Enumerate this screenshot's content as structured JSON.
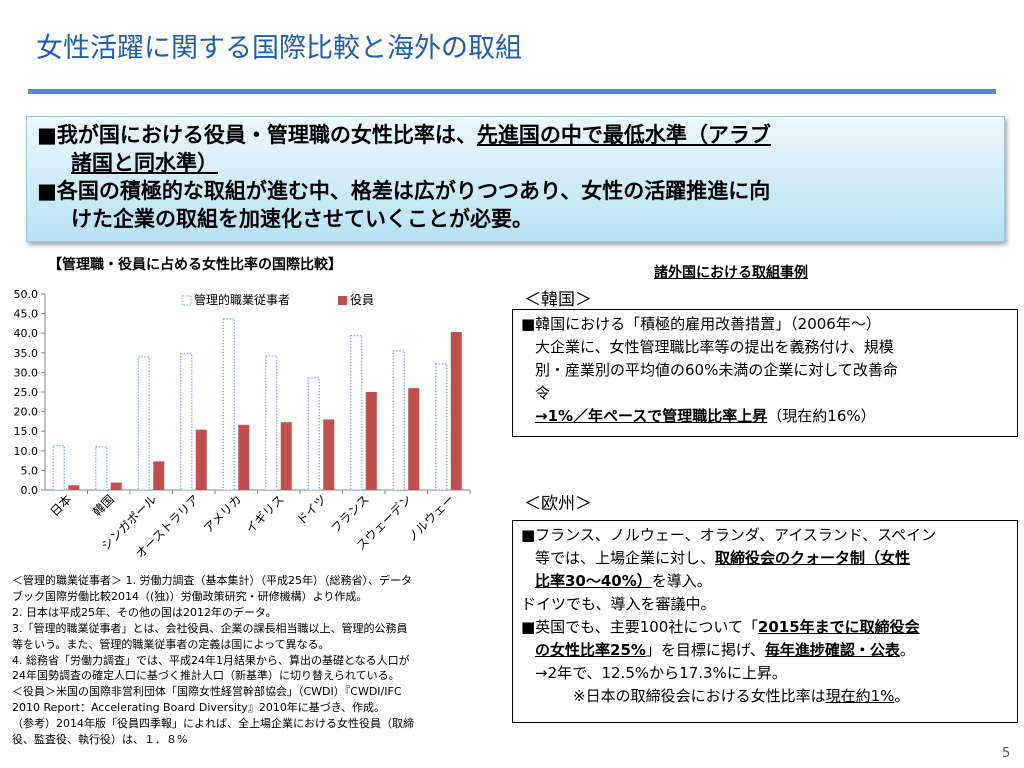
{
  "title": "女性活躍に関する国際比較と海外の取組",
  "summary": {
    "line1": {
      "prefix": "■我が国における役員・管理職の女性比率は、",
      "emphasis": "先進国の中で最低水準（アラブ"
    },
    "line2": {
      "emphasis": "諸国と同水準）"
    },
    "line3": "■各国の積極的な取組が進む中、格差は広がりつつあり、女性の活躍推進に向",
    "line4": "けた企業の取組を加速化させていくことが必要。"
  },
  "chart_title": "【管理職・役員に占める女性比率の国際比較】",
  "chart_data": {
    "type": "bar",
    "categories": [
      "日本",
      "韓国",
      "シンガポール",
      "オーストラリア",
      "アメリカ",
      "イギリス",
      "ドイツ",
      "フランス",
      "スウェーデン",
      "ノルウェー"
    ],
    "series": [
      {
        "name": "管理的職業従事者",
        "values": [
          11.3,
          11.0,
          33.9,
          34.8,
          43.7,
          34.2,
          28.6,
          39.4,
          35.5,
          32.2
        ],
        "color": "#ffffff",
        "stroke": "#8db3e2"
      },
      {
        "name": "役員",
        "values": [
          1.2,
          1.9,
          7.3,
          15.4,
          16.6,
          17.3,
          18.0,
          25.0,
          26.0,
          40.3
        ],
        "color": "#c0504d"
      }
    ],
    "ylim": [
      0,
      50
    ],
    "yticks": [
      "0.0",
      "5.0",
      "10.0",
      "15.0",
      "20.0",
      "25.0",
      "30.0",
      "35.0",
      "40.0",
      "45.0",
      "50.0"
    ],
    "grid": false,
    "legend": "top-center"
  },
  "notes": [
    "＜管理的職業従事者＞ 1. 労働力調査（基本集計）（平成25年）（総務省）、データ",
    "ブック国際労働比較2014（(独)）労働政策研究・研修機構）より作成。",
    "2. 日本は平成25年、その他の国は2012年のデータ。",
    "3.「管理的職業従事者」とは、会社役員、企業の課長相当職以上、管理的公務員",
    "等をいう。また、管理的職業従事者の定義は国によって異なる。",
    "4. 総務省「労働力調査」では、平成24年1月結果から、算出の基礎となる人口が",
    "24年国勢調査の確定人口に基づく推計人口（新基準）に切り替えられている。",
    "＜役員＞米国の国際非営利団体「国際女性経営幹部協会」（CWDI）『CWDI/IFC",
    "2010 Report：Accelerating Board Diversity』2010年に基づき、作成。",
    "（参考）2014年版「役員四季報」によれば、全上場企業における女性役員（取締",
    "役、監査役、執行役）は、１．８%"
  ],
  "cases_title": "諸外国における取組事例",
  "korea": {
    "label": "＜韓国＞",
    "line1": "■韓国における「積極的雇用改善措置」（2006年～）",
    "line2": "大企業に、女性管理職比率等の提出を義務付け、規模",
    "line3": "別・産業別の平均値の60%未満の企業に対して改善命",
    "line4": "令",
    "line5": {
      "emphasis": "→1%／年ペースで管理職比率上昇",
      "suffix": "（現在約16%）"
    }
  },
  "europe": {
    "label": "＜欧州＞",
    "line1": "■フランス、ノルウェー、オランダ、アイスランド、スペイン",
    "line2": {
      "prefix": "等では、上場企業に対し、",
      "emphasis": "取締役会のクォータ制（女性"
    },
    "line3": {
      "emphasis": "比率30～40%）",
      "suffix": "を導入。"
    },
    "line4": "ドイツでも、導入を審議中。",
    "line5": {
      "prefix": "■英国でも、主要100社について「",
      "emphasis": "2015年までに取締役会"
    },
    "line6": {
      "emphasis1": "の女性比率25%",
      "middle": "」を目標に掲げ、",
      "emphasis2": "毎年進捗確認・公表",
      "suffix": "。"
    },
    "line7": "→2年で、12.5%から17.3%に上昇。",
    "line8": {
      "prefix": "※日本の取締役会における女性比率は",
      "emphasis": "現在約1%",
      "suffix": "。"
    }
  },
  "page_number": "5"
}
